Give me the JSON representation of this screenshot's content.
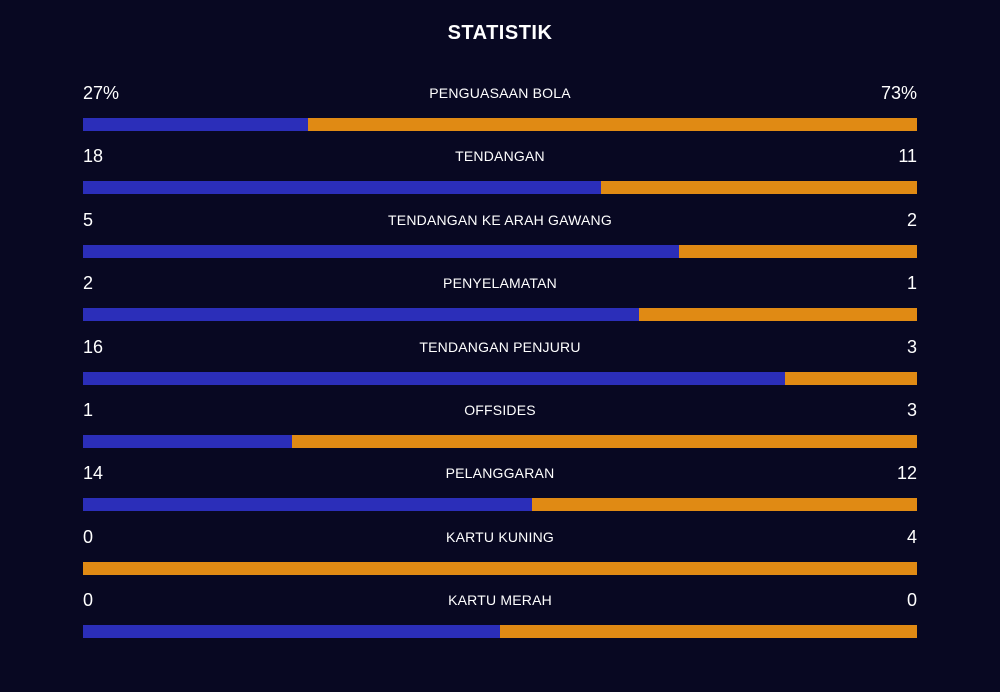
{
  "title": "STATISTIK",
  "colors": {
    "home": "#2b2eb9",
    "away": "#e08a14",
    "background": "#080822"
  },
  "stats": [
    {
      "label": "PENGUASAAN BOLA",
      "home": "27%",
      "away": "73%",
      "home_share": 0.27
    },
    {
      "label": "TENDANGAN",
      "home": "18",
      "away": "11",
      "home_share": 0.6207
    },
    {
      "label": "TENDANGAN KE ARAH GAWANG",
      "home": "5",
      "away": "2",
      "home_share": 0.7143
    },
    {
      "label": "PENYELAMATAN",
      "home": "2",
      "away": "1",
      "home_share": 0.6667
    },
    {
      "label": "TENDANGAN PENJURU",
      "home": "16",
      "away": "3",
      "home_share": 0.8421
    },
    {
      "label": "OFFSIDES",
      "home": "1",
      "away": "3",
      "home_share": 0.25
    },
    {
      "label": "PELANGGARAN",
      "home": "14",
      "away": "12",
      "home_share": 0.5385
    },
    {
      "label": "KARTU KUNING",
      "home": "0",
      "away": "4",
      "home_share": 0.0
    },
    {
      "label": "KARTU MERAH",
      "home": "0",
      "away": "0",
      "home_share": 0.5
    }
  ]
}
